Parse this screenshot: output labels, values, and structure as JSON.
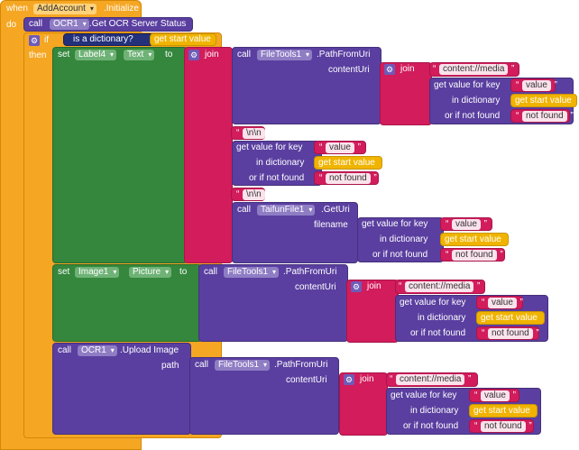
{
  "when_block": {
    "when_label": "when",
    "component": "AddAccount",
    "event": ".Initialize",
    "do_label": "do"
  },
  "call_ocr_status": {
    "call_label": "call",
    "component": "OCR1",
    "method": ".Get OCR Server Status"
  },
  "if_block": {
    "if_label": "if",
    "then_label": "then",
    "is_dict_label": "is a dictionary?",
    "get_start": "get start value"
  },
  "set_label4": {
    "set_label": "set",
    "component": "Label4",
    "property": "Text",
    "to_label": "to",
    "join_label": "join",
    "pathfromuri": {
      "call_label": "call",
      "component": "FileTools1",
      "method": ".PathFromUri",
      "param": "contentUri",
      "join_label": "join",
      "content_media": "content://media",
      "get_value_label": "get value for key",
      "key": "value",
      "in_dict_label": "in dictionary",
      "get_start": "get start value",
      "not_found_label": "or if not found",
      "not_found": "not found"
    },
    "sep1": "\\n\\n",
    "get2": {
      "get_value_label": "get value for key",
      "key": "value",
      "in_dict_label": "in dictionary",
      "get_start": "get start value",
      "not_found_label": "or if not found",
      "not_found": "not found"
    },
    "sep2": "\\n\\n",
    "geturi": {
      "call_label": "call",
      "component": "TaifunFile1",
      "method": ".GetUri",
      "param": "filename",
      "get_value_label": "get value for key",
      "key": "value",
      "in_dict_label": "in dictionary",
      "get_start": "get start value",
      "not_found_label": "or if not found",
      "not_found": "not found"
    }
  },
  "set_image1": {
    "set_label": "set",
    "component": "Image1",
    "property": "Picture",
    "to_label": "to",
    "pathfromuri": {
      "call_label": "call",
      "component": "FileTools1",
      "method": ".PathFromUri",
      "param": "contentUri",
      "join_label": "join",
      "content_media": "content://media",
      "get_value_label": "get value for key",
      "key": "value",
      "in_dict_label": "in dictionary",
      "get_start": "get start value",
      "not_found_label": "or if not found",
      "not_found": "not found"
    }
  },
  "upload": {
    "call_label": "call",
    "component": "OCR1",
    "method": ".Upload Image",
    "param": "path",
    "pathfromuri": {
      "call_label": "call",
      "component": "FileTools1",
      "method": ".PathFromUri",
      "param": "contentUri",
      "join_label": "join",
      "content_media": "content://media",
      "get_value_label": "get value for key",
      "key": "value",
      "in_dict_label": "in dictionary",
      "get_start": "get start value",
      "not_found_label": "or if not found",
      "not_found": "not found"
    }
  }
}
